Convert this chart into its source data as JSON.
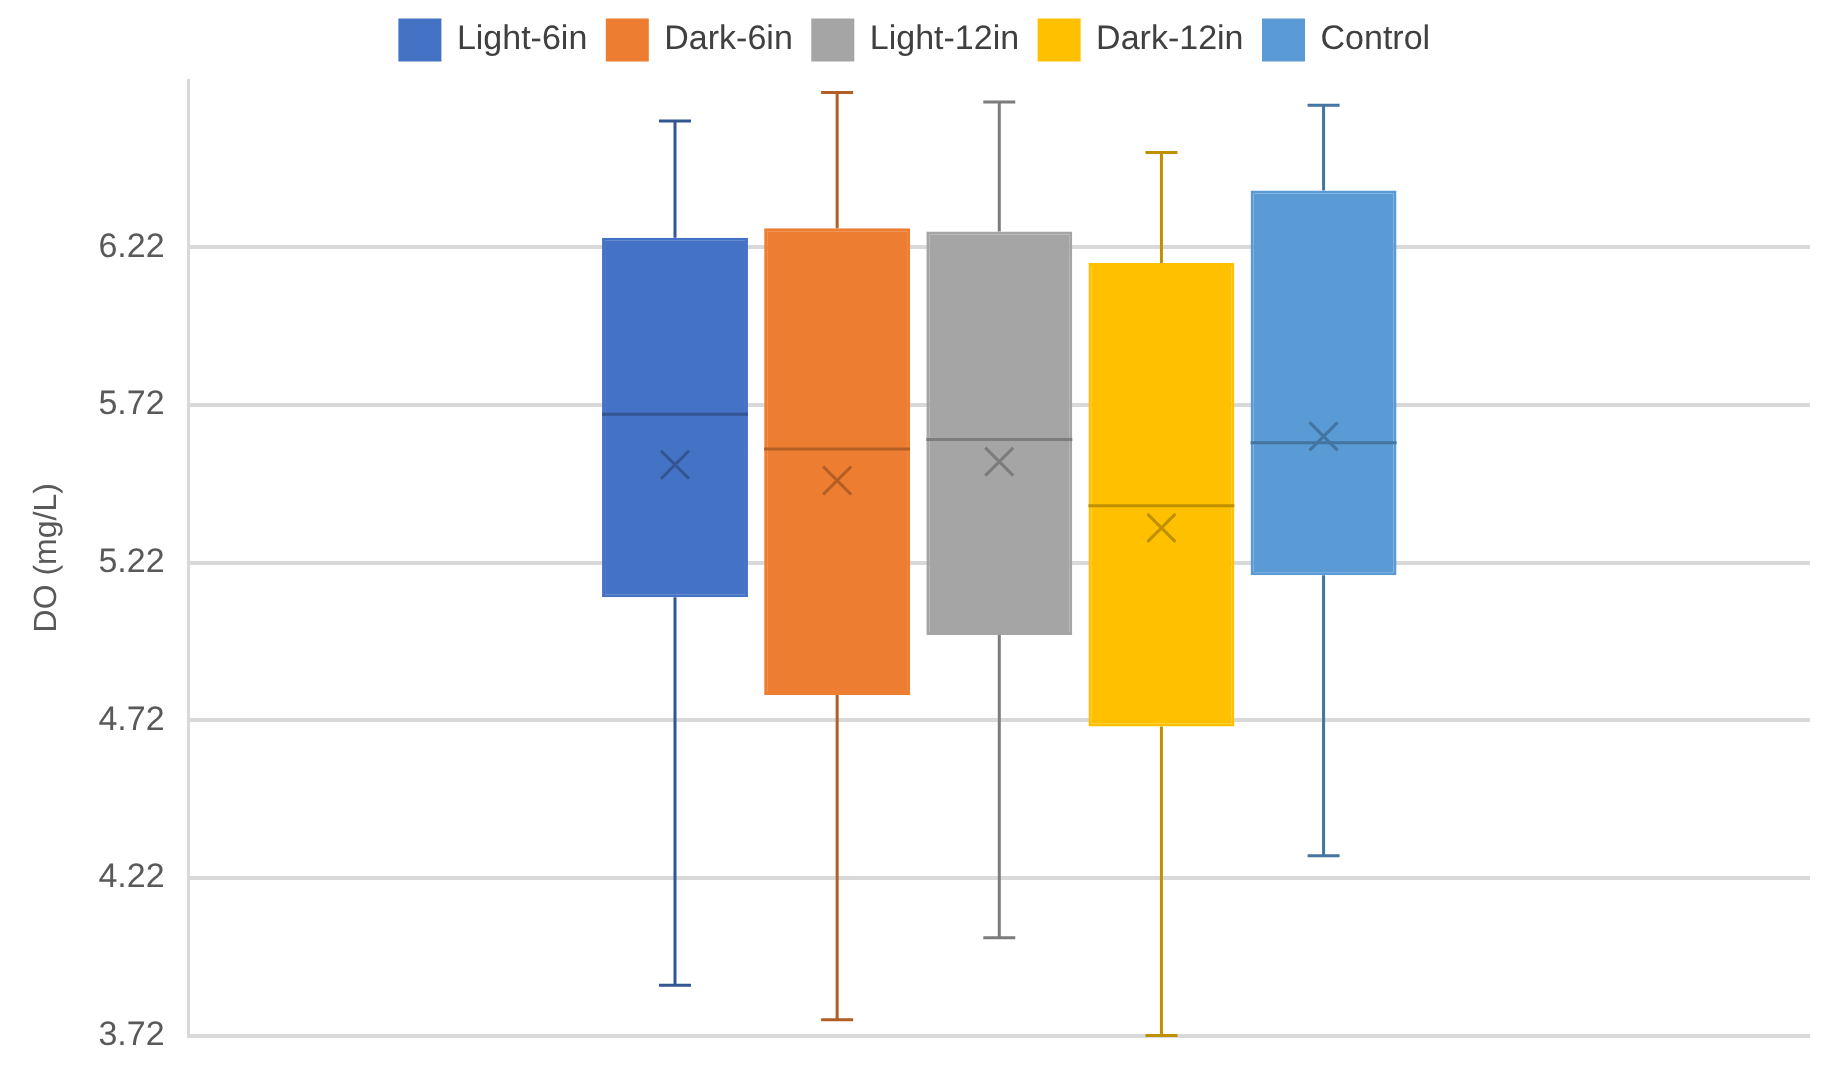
{
  "chart_data": {
    "type": "box",
    "ylabel": "DO (mg/L)",
    "categories": [
      null
    ],
    "ylim": [
      3.72,
      6.75
    ],
    "yticks": [
      3.72,
      4.22,
      4.72,
      5.22,
      5.72,
      6.22
    ],
    "grid": "y",
    "legend": "top",
    "tick_labels": "y",
    "series": [
      {
        "name": "Light-6in",
        "color": "#4472c4",
        "boxes": [
          {
            "low": 3.88,
            "q1": 5.11,
            "median": 5.69,
            "q3": 6.25,
            "high": 6.62,
            "mean": 5.53
          }
        ]
      },
      {
        "name": "Dark-6in",
        "color": "#ed7d31",
        "boxes": [
          {
            "low": 3.77,
            "q1": 4.8,
            "median": 5.58,
            "q3": 6.28,
            "high": 6.71,
            "mean": 5.48
          }
        ]
      },
      {
        "name": "Light-12in",
        "color": "#a5a5a5",
        "boxes": [
          {
            "low": 4.03,
            "q1": 4.99,
            "median": 5.61,
            "q3": 6.27,
            "high": 6.68,
            "mean": 5.54
          }
        ]
      },
      {
        "name": "Dark-12in",
        "color": "#ffc000",
        "boxes": [
          {
            "low": 3.72,
            "q1": 4.7,
            "median": 5.4,
            "q3": 6.17,
            "high": 6.52,
            "mean": 5.33
          }
        ]
      },
      {
        "name": "Control",
        "color": "#5b9bd5",
        "boxes": [
          {
            "low": 4.29,
            "q1": 5.18,
            "median": 5.6,
            "q3": 6.4,
            "high": 6.67,
            "mean": 5.62
          }
        ]
      }
    ]
  }
}
